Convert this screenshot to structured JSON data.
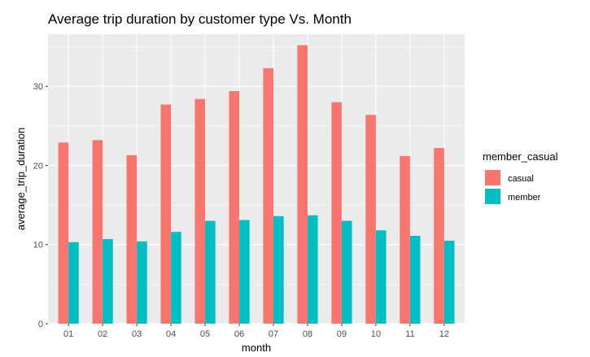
{
  "chart_data": {
    "type": "bar",
    "title": "Average trip duration by customer type Vs. Month",
    "xlabel": "month",
    "ylabel": "average_trip_duration",
    "categories": [
      "01",
      "02",
      "03",
      "04",
      "05",
      "06",
      "07",
      "08",
      "09",
      "10",
      "11",
      "12"
    ],
    "series": [
      {
        "name": "casual",
        "color": "#f8766d",
        "values": [
          22.9,
          23.2,
          21.3,
          27.7,
          28.4,
          29.4,
          32.3,
          35.2,
          28.0,
          26.4,
          21.2,
          22.2
        ]
      },
      {
        "name": "member",
        "color": "#00bfc4",
        "values": [
          10.3,
          10.7,
          10.4,
          11.6,
          13.0,
          13.1,
          13.6,
          13.7,
          13.0,
          11.8,
          11.1,
          10.5
        ]
      }
    ],
    "ylim": [
      0,
      36.6
    ],
    "yticks": [
      0,
      10,
      20,
      30
    ],
    "grid": true,
    "legend": {
      "title": "member_casual",
      "position": "right"
    },
    "panel_color": "#ebebeb"
  }
}
